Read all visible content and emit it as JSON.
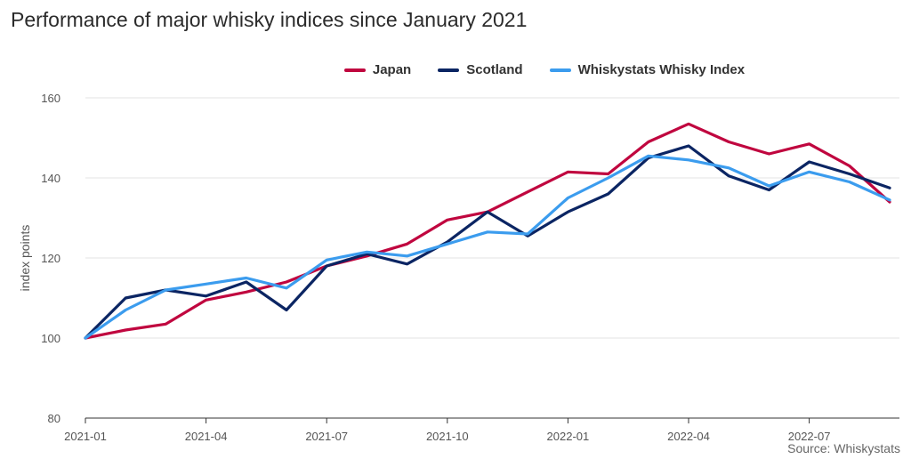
{
  "chart_data": {
    "type": "line",
    "title": "Performance of major whisky indices since January 2021",
    "ylabel": "index points",
    "ylim": [
      80,
      160
    ],
    "yticks": [
      80,
      100,
      120,
      140,
      160
    ],
    "x": [
      "2021-01",
      "2021-02",
      "2021-03",
      "2021-04",
      "2021-05",
      "2021-06",
      "2021-07",
      "2021-08",
      "2021-09",
      "2021-10",
      "2021-11",
      "2021-12",
      "2022-01",
      "2022-02",
      "2022-03",
      "2022-04",
      "2022-05",
      "2022-06",
      "2022-07",
      "2022-08",
      "2022-09"
    ],
    "xticks": [
      "2021-01",
      "2021-04",
      "2021-07",
      "2021-10",
      "2022-01",
      "2022-04",
      "2022-07"
    ],
    "legend_position": "top-center",
    "grid": true,
    "series": [
      {
        "name": "Japan",
        "color": "#c0063f",
        "values": [
          100,
          102,
          103.5,
          109.5,
          111.5,
          114,
          118,
          120.5,
          123.5,
          129.5,
          131.5,
          136.5,
          141.5,
          141,
          149,
          153.5,
          149,
          146,
          148.5,
          143,
          134
        ]
      },
      {
        "name": "Scotland",
        "color": "#0b2563",
        "values": [
          100,
          110,
          112,
          110.5,
          114,
          107,
          118,
          121,
          118.5,
          124,
          131.5,
          125.5,
          131.5,
          136,
          145,
          148,
          140.5,
          137,
          144,
          141,
          137.5
        ]
      },
      {
        "name": "Whiskystats Whisky Index",
        "color": "#3b9cee",
        "values": [
          100,
          107,
          112,
          113.5,
          115,
          112.5,
          119.5,
          121.5,
          120.5,
          123.5,
          126.5,
          126,
          135,
          140,
          145.5,
          144.5,
          142.5,
          138,
          141.5,
          139,
          134.5
        ]
      }
    ]
  },
  "source": "Source: Whiskystats"
}
